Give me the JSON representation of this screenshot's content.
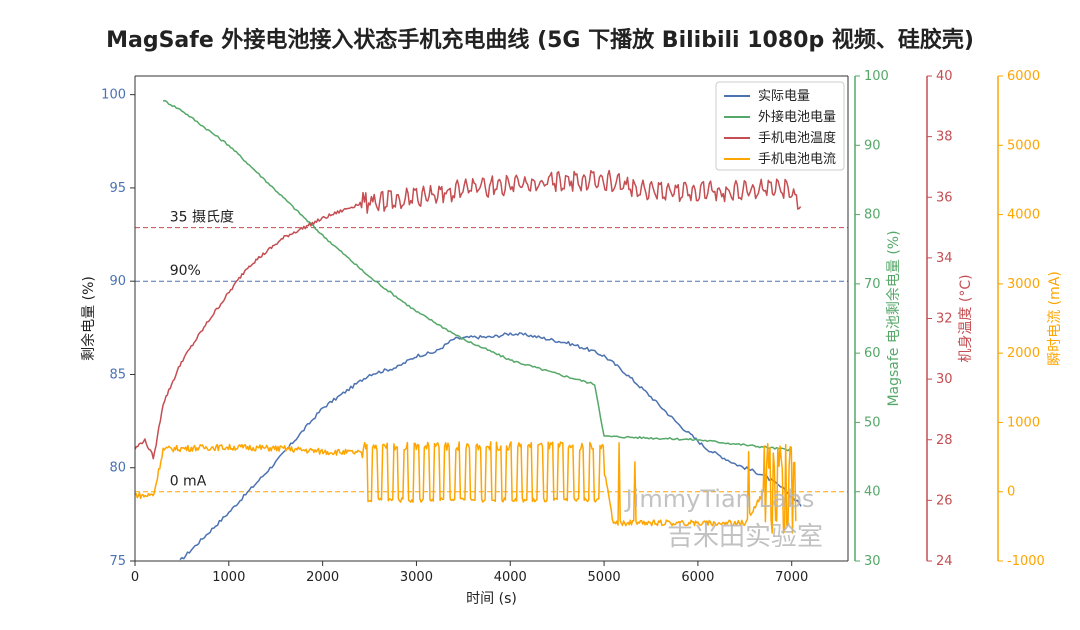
{
  "chart_data": {
    "type": "line",
    "title": "MagSafe 外接电池接入状态手机充电曲线 (5G 下播放 Bilibili 1080p 视频、硅胶壳)",
    "xlabel": "时间 (s)",
    "xlim": [
      0,
      7600
    ],
    "xticks": [
      0,
      1000,
      2000,
      3000,
      4000,
      5000,
      6000,
      7000
    ],
    "axes": {
      "left": {
        "label": "剩余电量 (%)",
        "range": [
          75,
          101
        ],
        "ticks": [
          75,
          80,
          85,
          90,
          95,
          100
        ],
        "color": "#4c72b0"
      },
      "right1": {
        "label": "Magsafe 电池剩余电量 (%)",
        "range": [
          30,
          100
        ],
        "ticks": [
          30,
          40,
          50,
          60,
          70,
          80,
          90,
          100
        ],
        "color": "#55a868"
      },
      "right2": {
        "label": "机身温度 (°C)",
        "range": [
          24,
          40
        ],
        "ticks": [
          24,
          26,
          28,
          30,
          32,
          34,
          36,
          38,
          40
        ],
        "color": "#c44e52"
      },
      "right3": {
        "label": "瞬时电流 (mA)",
        "range": [
          -1000,
          6000
        ],
        "ticks": [
          -1000,
          0,
          1000,
          2000,
          3000,
          4000,
          5000,
          6000
        ],
        "color": "#ffa500"
      }
    },
    "legend_position": "top-right",
    "grid": false,
    "series": [
      {
        "name": "实际电量",
        "axis": "left",
        "color": "#4c72b0",
        "x": [
          480,
          1000,
          1500,
          2000,
          2500,
          2800,
          3000,
          3200,
          3400,
          3600,
          3800,
          4000,
          4200,
          4400,
          4600,
          4800,
          5000,
          5200,
          5500,
          5800,
          6100,
          6400,
          6700,
          6900,
          7100
        ],
        "y": [
          75,
          77.6,
          80.3,
          83.2,
          85.0,
          85.4,
          86.0,
          86.2,
          86.9,
          87.0,
          87.0,
          87.2,
          87.1,
          86.9,
          86.7,
          86.4,
          86.0,
          85.2,
          83.8,
          82.3,
          81.0,
          80.2,
          79.6,
          78.9,
          78.0
        ]
      },
      {
        "name": "外接电池电量",
        "axis": "right1",
        "color": "#55a868",
        "x": [
          300,
          500,
          1000,
          1500,
          2000,
          2500,
          3000,
          3500,
          4000,
          4500,
          4900,
          5000,
          6000,
          7000
        ],
        "y": [
          96.5,
          95,
          90,
          83.5,
          77,
          71,
          66,
          62,
          59,
          57,
          55.5,
          48,
          47.5,
          46
        ]
      },
      {
        "name": "手机电池温度",
        "axis": "right2",
        "color": "#c44e52",
        "x": [
          0,
          100,
          200,
          300,
          500,
          800,
          1200,
          1600,
          2000,
          2400,
          2800,
          3200,
          3600,
          4000,
          4500,
          5000,
          5200,
          5600,
          6000,
          6500,
          6800,
          7000,
          7100
        ],
        "y": [
          27.7,
          28.0,
          27.4,
          29.2,
          30.6,
          32.0,
          33.7,
          34.7,
          35.3,
          35.8,
          35.9,
          36.1,
          36.3,
          36.4,
          36.5,
          36.6,
          36.4,
          36.2,
          36.2,
          36.2,
          36.3,
          36.2,
          35.8
        ]
      },
      {
        "name": "手机电池电流",
        "axis": "right3",
        "color": "#ffa500",
        "x": [
          0,
          100,
          200,
          300,
          400,
          800,
          1200,
          1600,
          2000,
          2400,
          2500,
          3000,
          3500,
          4000,
          4500,
          5000,
          5100,
          6000,
          6500,
          6800,
          7000,
          7050
        ],
        "y": [
          -40,
          -60,
          -40,
          610,
          620,
          640,
          640,
          620,
          580,
          560,
          300,
          300,
          300,
          300,
          300,
          300,
          -450,
          -450,
          -450,
          200,
          -200,
          -700
        ]
      }
    ],
    "annotations": [
      {
        "text": "35 摄氏度",
        "axis": "right2",
        "y": 35,
        "color": "#c44e52",
        "x": 370
      },
      {
        "text": "90%",
        "axis": "left",
        "y": 90,
        "color": "#4c72b0",
        "x": 370
      },
      {
        "text": "0 mA",
        "axis": "right3",
        "y": 0,
        "color": "#ffa500",
        "x": 370
      }
    ]
  },
  "watermark": {
    "line1": "JimmyTian Labs",
    "line2": "吉米田实验室"
  }
}
